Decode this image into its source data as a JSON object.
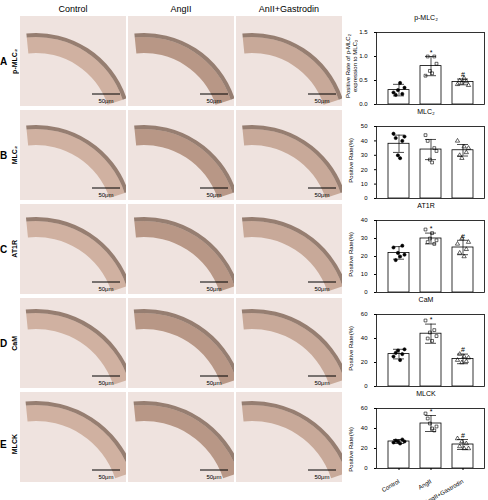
{
  "panels": {
    "columns": [
      "Control",
      "AngII",
      "AnII+Gastrodin"
    ],
    "scale_bar": "50μm"
  },
  "chart_data": [
    {
      "type": "bar",
      "panel": "A",
      "row_label": "p-MLC₂",
      "title": "p-MLC₂",
      "y_label": "Positive Rate of p-MLC₂ expression to MLC₂",
      "categories": [
        "Control",
        "AngII",
        "AngII+Gastrodin"
      ],
      "values": [
        0.3,
        0.8,
        0.47
      ],
      "errors": [
        0.12,
        0.2,
        0.06
      ],
      "points": [
        [
          0.25,
          0.2,
          0.3,
          0.45,
          0.22,
          0.35
        ],
        [
          0.6,
          1.0,
          0.7,
          0.65,
          1.0,
          0.85
        ],
        [
          0.42,
          0.5,
          0.45,
          0.55,
          0.48,
          0.4
        ]
      ],
      "annotations": [
        {
          "category": "AngII",
          "text": "*"
        },
        {
          "category": "AngII+Gastrodin",
          "text": "#"
        }
      ],
      "ylim": [
        0,
        1.5
      ],
      "yticks": [
        {
          "value": 0,
          "label": "0.0"
        },
        {
          "value": 0.5,
          "label": "0.5"
        },
        {
          "value": 1,
          "label": "1.0"
        },
        {
          "value": 1.5,
          "label": "1.5"
        }
      ],
      "tick_labels": "y"
    },
    {
      "type": "bar",
      "panel": "B",
      "row_label": "MLC₂",
      "title": "MLC₂",
      "y_label": "Positive Rate(%)",
      "categories": [
        "Control",
        "AngII",
        "AngII+Gastrodin"
      ],
      "values": [
        38,
        34,
        33.5
      ],
      "errors": [
        6,
        7,
        4
      ],
      "points": [
        [
          45,
          42,
          30,
          28,
          40,
          43
        ],
        [
          44,
          40,
          27,
          25,
          35,
          33
        ],
        [
          40,
          30,
          28,
          36,
          32,
          35
        ]
      ],
      "ylim": [
        0,
        50
      ],
      "yticks": [
        0,
        10,
        20,
        30,
        40,
        50
      ],
      "tick_labels": "y"
    },
    {
      "type": "bar",
      "panel": "C",
      "row_label": "AT1R",
      "title": "AT1R",
      "y_label": "Positive Rate(%)",
      "categories": [
        "Control",
        "AngII",
        "AngII+Gastrodin"
      ],
      "values": [
        22,
        30,
        25
      ],
      "errors": [
        3.5,
        3,
        4
      ],
      "points": [
        [
          25,
          18,
          22,
          20,
          26,
          21
        ],
        [
          35,
          28,
          30,
          33,
          27,
          29
        ],
        [
          27,
          22,
          30,
          20,
          24,
          28
        ]
      ],
      "annotations": [
        {
          "category": "AngII",
          "text": "*"
        },
        {
          "category": "AngII+Gastrodin",
          "text": "#"
        }
      ],
      "ylim": [
        0,
        40
      ],
      "yticks": [
        0,
        10,
        20,
        30,
        40
      ],
      "tick_labels": "y"
    },
    {
      "type": "bar",
      "panel": "D",
      "row_label": "CaM",
      "title": "CaM",
      "y_label": "Positive Rate(%)",
      "categories": [
        "Control",
        "AngII",
        "AngII+Gastrodin"
      ],
      "values": [
        27,
        44,
        23
      ],
      "errors": [
        4,
        8,
        4
      ],
      "points": [
        [
          25,
          28,
          30,
          22,
          27,
          31
        ],
        [
          55,
          40,
          45,
          38,
          47,
          42
        ],
        [
          22,
          27,
          20,
          25,
          21,
          24
        ]
      ],
      "annotations": [
        {
          "category": "AngII",
          "text": "*"
        },
        {
          "category": "AngII+Gastrodin",
          "text": "#"
        }
      ],
      "ylim": [
        0,
        60
      ],
      "yticks": [
        0,
        20,
        40,
        60
      ],
      "tick_labels": "y"
    },
    {
      "type": "bar",
      "panel": "E",
      "row_label": "MLCK",
      "title": "MLCK",
      "y_label": "Positive Rate(%)",
      "categories": [
        "Control",
        "AngII",
        "AngII+Gastrodin"
      ],
      "values": [
        27,
        45,
        24
      ],
      "errors": [
        2,
        8,
        5
      ],
      "points": [
        [
          26,
          28,
          27,
          25,
          29,
          27
        ],
        [
          55,
          50,
          45,
          40,
          38,
          42
        ],
        [
          30,
          22,
          27,
          20,
          25,
          20
        ]
      ],
      "annotations": [
        {
          "category": "AngII",
          "text": "*"
        },
        {
          "category": "AngII+Gastrodin",
          "text": "#"
        }
      ],
      "ylim": [
        0,
        60
      ],
      "yticks": [
        0,
        20,
        40,
        60
      ]
    }
  ]
}
